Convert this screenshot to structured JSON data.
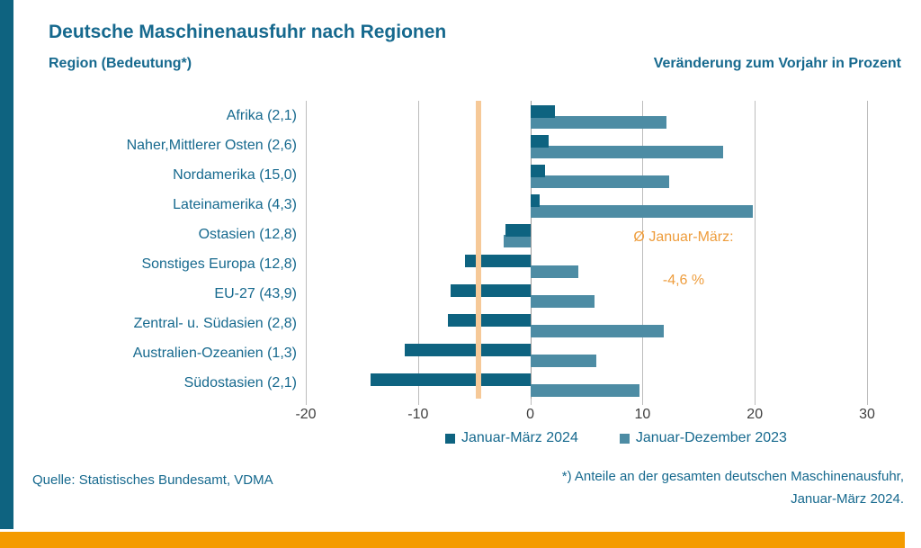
{
  "slide": {
    "title": "Deutsche Maschinenausfuhr nach Regionen",
    "left_subtitle": "Region (Bedeutung*)",
    "right_subtitle": "Veränderung zum Vorjahr in Prozent",
    "source": "Quelle: Statistisches Bundesamt, VDMA",
    "footnote_line1": "*) Anteile an der gesamten deutschen Maschinenausfuhr,",
    "footnote_line2": "Januar-März 2024."
  },
  "chart_data": {
    "type": "bar",
    "orientation": "horizontal",
    "categories": [
      "Afrika (2,1)",
      "Naher,Mittlerer Osten (2,6)",
      "Nordamerika (15,0)",
      "Lateinamerika (4,3)",
      "Ostasien (12,8)",
      "Sonstiges Europa (12,8)",
      "EU-27 (43,9)",
      "Zentral- u. Südasien (2,8)",
      "Australien-Ozeanien (1,3)",
      "Südostasien (2,1)"
    ],
    "series": [
      {
        "name": "Januar-März 2024",
        "color": "#0e6380",
        "values": [
          2.2,
          1.6,
          1.3,
          0.8,
          -2.2,
          -5.8,
          -7.1,
          -7.3,
          -11.2,
          -14.2
        ]
      },
      {
        "name": "Januar-Dezember 2023",
        "color": "#4d8ca4",
        "values": [
          12.1,
          17.2,
          12.4,
          19.8,
          -2.4,
          4.3,
          5.7,
          11.9,
          5.9,
          9.7
        ]
      }
    ],
    "x_ticks": [
      -20,
      -10,
      0,
      10,
      20,
      30
    ],
    "xlim": [
      -20,
      30
    ],
    "grid": true,
    "legend_position": "bottom",
    "average_line": {
      "value": -4.6,
      "label_line1": "Ø Januar-März:",
      "label_line2": "-4,6 %",
      "color": "#f6c998"
    }
  },
  "colors": {
    "teal_text": "#16698e",
    "dark_bar": "#0e6380",
    "light_bar": "#4d8ca4",
    "gridline": "#bcbcbc",
    "zero_line": "#9b9b9b",
    "tick_label": "#3f3f3f",
    "average_line": "#f6c998",
    "orange_accent": "#ee9d3d",
    "left_strip": "#0e6380",
    "bottom_bar": "#f49b00"
  }
}
